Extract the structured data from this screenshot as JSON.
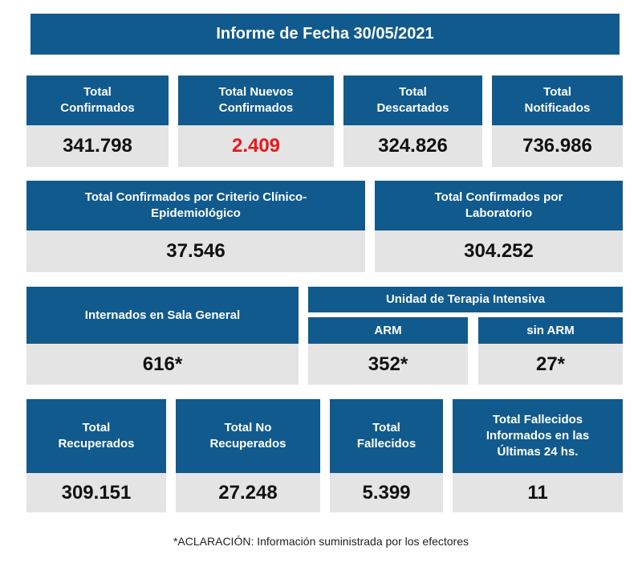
{
  "title": "Informe de Fecha 30/05/2021",
  "row1": [
    {
      "label": "Total\nConfirmados",
      "value": "341.798"
    },
    {
      "label": "Total Nuevos\nConfirmados",
      "value": "2.409"
    },
    {
      "label": "Total\nDescartados",
      "value": "324.826"
    },
    {
      "label": "Total\nNotificados",
      "value": "736.986"
    }
  ],
  "row2": [
    {
      "label": "Total Confirmados por Criterio Clínico-\nEpidemiológico",
      "value": "37.546"
    },
    {
      "label": "Total Confirmados por\nLaboratorio",
      "value": "304.252"
    }
  ],
  "row3": {
    "general": {
      "label": "Internados en Sala General",
      "value": "616*"
    },
    "uti_title": "Unidad de Terapia Intensiva",
    "arm": {
      "label": "ARM",
      "value": "352*"
    },
    "sin_arm": {
      "label": "sin ARM",
      "value": "27*"
    }
  },
  "row4": [
    {
      "label": "Total\nRecuperados",
      "value": "309.151"
    },
    {
      "label": "Total No\nRecuperados",
      "value": "27.248"
    },
    {
      "label": "Total\nFallecidos",
      "value": "5.399"
    },
    {
      "label": "Total Fallecidos\nInformados en las\nÚltimas 24 hs.",
      "value": "11"
    }
  ],
  "footnote": "*ACLARACIÓN: Información suministrada por los efectores",
  "colors": {
    "header_blue": "#115a8e",
    "value_gray": "#e4e4e4",
    "highlight_red": "#e8191c"
  }
}
